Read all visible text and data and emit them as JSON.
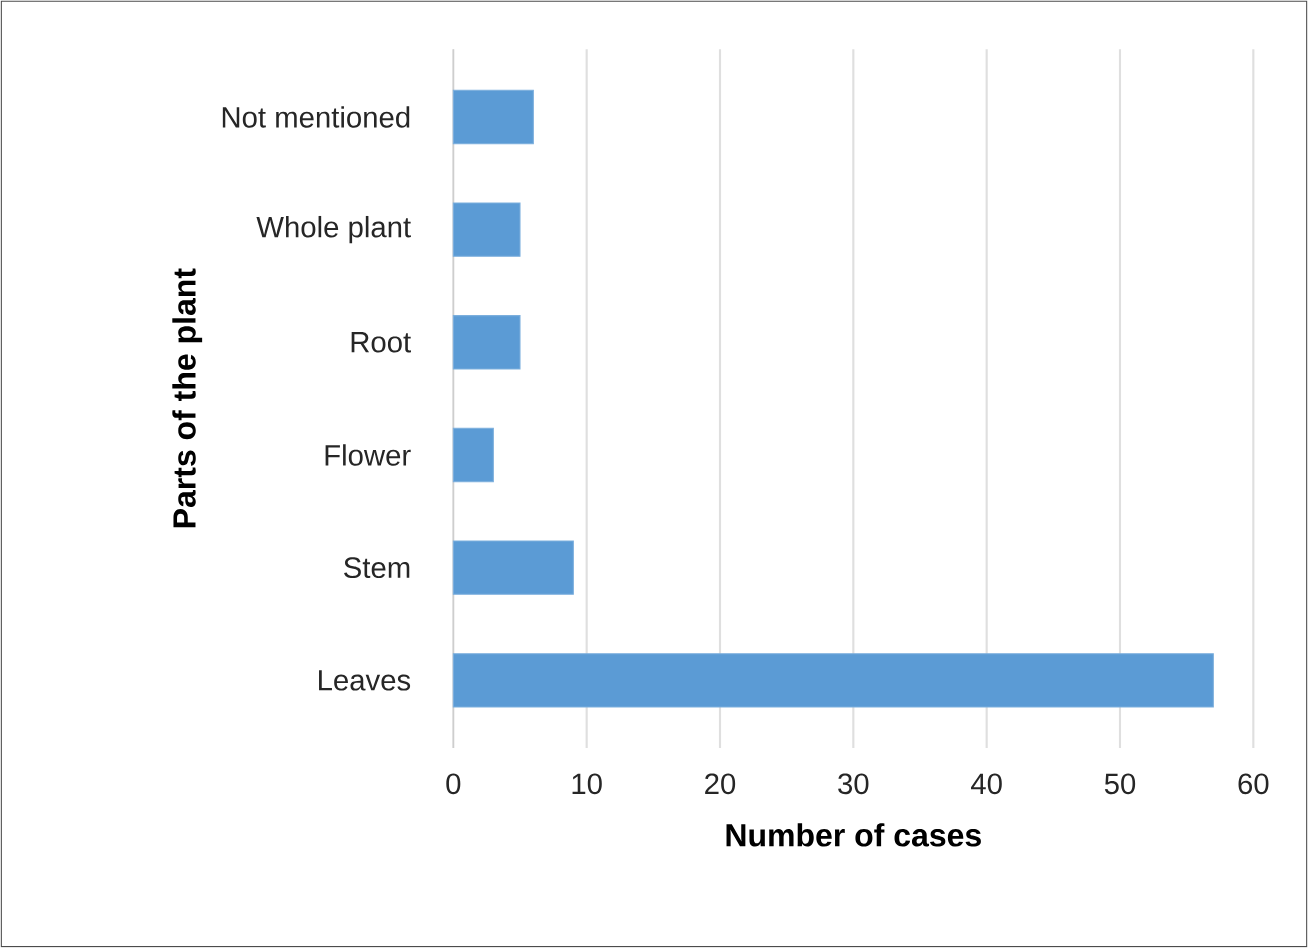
{
  "chart_data": {
    "type": "bar",
    "orientation": "horizontal",
    "xlabel": "Number of cases",
    "ylabel": "Parts of the plant",
    "categories": [
      "Not mentioned",
      "Whole plant",
      "Root",
      "Flower",
      "Stem",
      "Leaves"
    ],
    "values": [
      6,
      5,
      5,
      3,
      9,
      57
    ],
    "color": "#5b9bd5",
    "xlim": [
      0,
      60
    ],
    "xticks": [
      0,
      10,
      20,
      30,
      40,
      50,
      60
    ],
    "grid": "x"
  }
}
